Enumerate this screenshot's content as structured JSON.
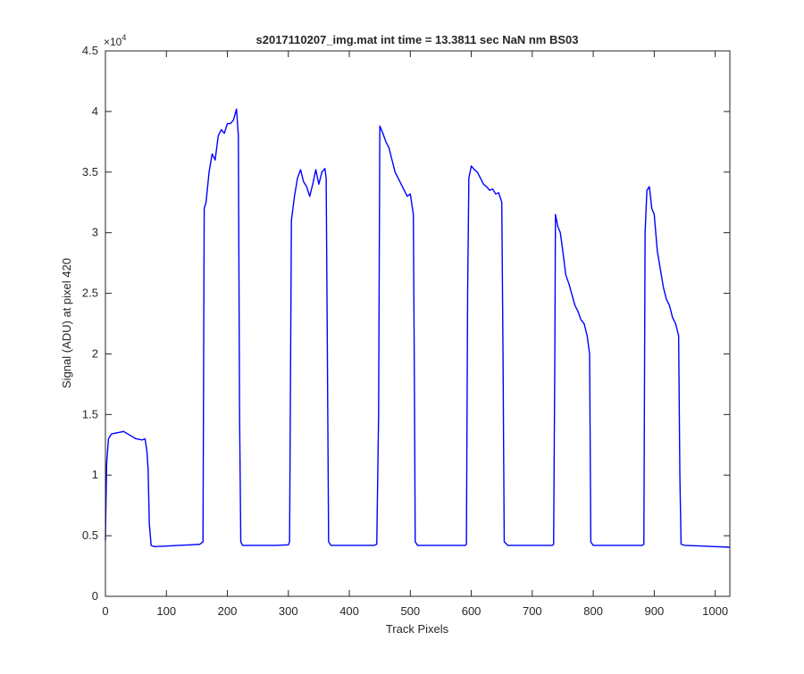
{
  "chart_data": {
    "type": "line",
    "title": "s2017110207_img.mat int time = 13.3811 sec  NaN nm BS03",
    "xlabel": "Track Pixels",
    "ylabel": "Signal (ADU) at pixel 420",
    "xlim": [
      0,
      1024
    ],
    "ylim": [
      0,
      45000
    ],
    "x_ticks": [
      0,
      100,
      200,
      300,
      400,
      500,
      600,
      700,
      800,
      900,
      1000
    ],
    "y_ticks": [
      0,
      5000,
      10000,
      15000,
      20000,
      25000,
      30000,
      35000,
      40000,
      45000
    ],
    "y_tick_labels": [
      "0",
      "0.5",
      "1",
      "1.5",
      "2",
      "2.5",
      "3",
      "3.5",
      "4",
      "4.5"
    ],
    "y_exponent_label": "×10",
    "y_exponent_power": "4",
    "grid": false,
    "series": [
      {
        "color": "#0000ff",
        "points": [
          [
            0,
            4600
          ],
          [
            2,
            11000
          ],
          [
            5,
            13000
          ],
          [
            10,
            13400
          ],
          [
            20,
            13500
          ],
          [
            30,
            13600
          ],
          [
            40,
            13300
          ],
          [
            50,
            13000
          ],
          [
            60,
            12900
          ],
          [
            65,
            13000
          ],
          [
            68,
            12000
          ],
          [
            70,
            10500
          ],
          [
            72,
            6000
          ],
          [
            75,
            4200
          ],
          [
            80,
            4100
          ],
          [
            100,
            4150
          ],
          [
            120,
            4200
          ],
          [
            140,
            4250
          ],
          [
            155,
            4300
          ],
          [
            160,
            4500
          ],
          [
            162,
            32000
          ],
          [
            165,
            32500
          ],
          [
            170,
            35000
          ],
          [
            175,
            36500
          ],
          [
            180,
            36000
          ],
          [
            185,
            38000
          ],
          [
            190,
            38500
          ],
          [
            195,
            38200
          ],
          [
            200,
            39000
          ],
          [
            205,
            39000
          ],
          [
            210,
            39300
          ],
          [
            215,
            40200
          ],
          [
            218,
            38000
          ],
          [
            220,
            15000
          ],
          [
            222,
            4500
          ],
          [
            225,
            4200
          ],
          [
            250,
            4200
          ],
          [
            280,
            4200
          ],
          [
            300,
            4250
          ],
          [
            302,
            4500
          ],
          [
            305,
            31000
          ],
          [
            310,
            33000
          ],
          [
            315,
            34500
          ],
          [
            320,
            35200
          ],
          [
            325,
            34200
          ],
          [
            330,
            33800
          ],
          [
            335,
            33000
          ],
          [
            340,
            34000
          ],
          [
            345,
            35200
          ],
          [
            350,
            34000
          ],
          [
            355,
            35000
          ],
          [
            360,
            35300
          ],
          [
            362,
            34500
          ],
          [
            364,
            20000
          ],
          [
            366,
            4500
          ],
          [
            370,
            4200
          ],
          [
            400,
            4200
          ],
          [
            440,
            4200
          ],
          [
            445,
            4300
          ],
          [
            448,
            15000
          ],
          [
            450,
            38800
          ],
          [
            455,
            38200
          ],
          [
            460,
            37500
          ],
          [
            465,
            37000
          ],
          [
            470,
            36000
          ],
          [
            475,
            35000
          ],
          [
            480,
            34500
          ],
          [
            485,
            34000
          ],
          [
            490,
            33500
          ],
          [
            495,
            33000
          ],
          [
            500,
            33200
          ],
          [
            505,
            31500
          ],
          [
            507,
            15000
          ],
          [
            508,
            4500
          ],
          [
            512,
            4200
          ],
          [
            550,
            4200
          ],
          [
            590,
            4200
          ],
          [
            592,
            4300
          ],
          [
            594,
            25000
          ],
          [
            596,
            34500
          ],
          [
            600,
            35500
          ],
          [
            605,
            35200
          ],
          [
            610,
            35000
          ],
          [
            615,
            34500
          ],
          [
            620,
            34000
          ],
          [
            625,
            33800
          ],
          [
            630,
            33500
          ],
          [
            635,
            33600
          ],
          [
            640,
            33200
          ],
          [
            645,
            33300
          ],
          [
            650,
            32500
          ],
          [
            652,
            20000
          ],
          [
            654,
            4500
          ],
          [
            660,
            4200
          ],
          [
            700,
            4200
          ],
          [
            733,
            4200
          ],
          [
            735,
            4300
          ],
          [
            737,
            20000
          ],
          [
            738,
            31500
          ],
          [
            742,
            30500
          ],
          [
            746,
            30000
          ],
          [
            750,
            28500
          ],
          [
            755,
            26500
          ],
          [
            760,
            25800
          ],
          [
            765,
            24900
          ],
          [
            770,
            24000
          ],
          [
            775,
            23500
          ],
          [
            780,
            22800
          ],
          [
            785,
            22500
          ],
          [
            790,
            21500
          ],
          [
            794,
            20000
          ],
          [
            796,
            4500
          ],
          [
            800,
            4200
          ],
          [
            850,
            4200
          ],
          [
            880,
            4200
          ],
          [
            883,
            4300
          ],
          [
            885,
            30000
          ],
          [
            888,
            33500
          ],
          [
            892,
            33800
          ],
          [
            896,
            32000
          ],
          [
            900,
            31500
          ],
          [
            905,
            28500
          ],
          [
            910,
            27000
          ],
          [
            915,
            25500
          ],
          [
            920,
            24500
          ],
          [
            925,
            24000
          ],
          [
            930,
            23000
          ],
          [
            935,
            22500
          ],
          [
            940,
            21500
          ],
          [
            942,
            10000
          ],
          [
            944,
            4300
          ],
          [
            950,
            4200
          ],
          [
            980,
            4150
          ],
          [
            1000,
            4100
          ],
          [
            1024,
            4050
          ]
        ]
      }
    ]
  }
}
